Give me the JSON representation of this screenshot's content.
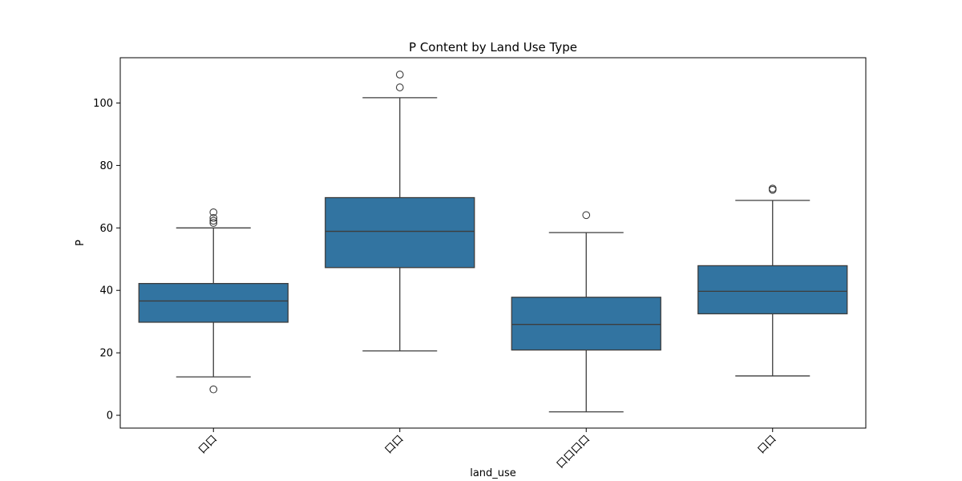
{
  "chart_data": {
    "type": "box",
    "title": "P Content by Land Use Type",
    "xlabel": "land_use",
    "ylabel": "P",
    "ylim": [
      -4.1,
      114.5
    ],
    "yticks": [
      0,
      20,
      40,
      60,
      80,
      100
    ],
    "ytick_labels": [
      "0",
      "20",
      "40",
      "60",
      "80",
      "100"
    ],
    "categories": [
      "口口",
      "口口",
      "口口口口",
      "口口"
    ],
    "grid": false,
    "legend": "none",
    "colors": {
      "box_fill": "#3274a1",
      "line": "#3d3d3d",
      "axis": "#000000"
    },
    "series": [
      {
        "values": [
          {
            "whisker_low": 12.3,
            "q1": 29.8,
            "median": 36.6,
            "q3": 42.2,
            "whisker_high": 60.0,
            "outliers": [
              8.3,
              61.6,
              62.3,
              63.2,
              65.0
            ]
          },
          {
            "whisker_low": 20.6,
            "q1": 47.3,
            "median": 58.9,
            "q3": 69.7,
            "whisker_high": 101.7,
            "outliers": [
              105.0,
              109.1
            ]
          },
          {
            "whisker_low": 1.1,
            "q1": 20.9,
            "median": 29.1,
            "q3": 37.8,
            "whisker_high": 58.5,
            "outliers": [
              64.1
            ]
          },
          {
            "whisker_low": 12.6,
            "q1": 32.5,
            "median": 39.7,
            "q3": 47.9,
            "whisker_high": 68.8,
            "outliers": [
              72.2,
              72.6
            ]
          }
        ]
      }
    ]
  }
}
